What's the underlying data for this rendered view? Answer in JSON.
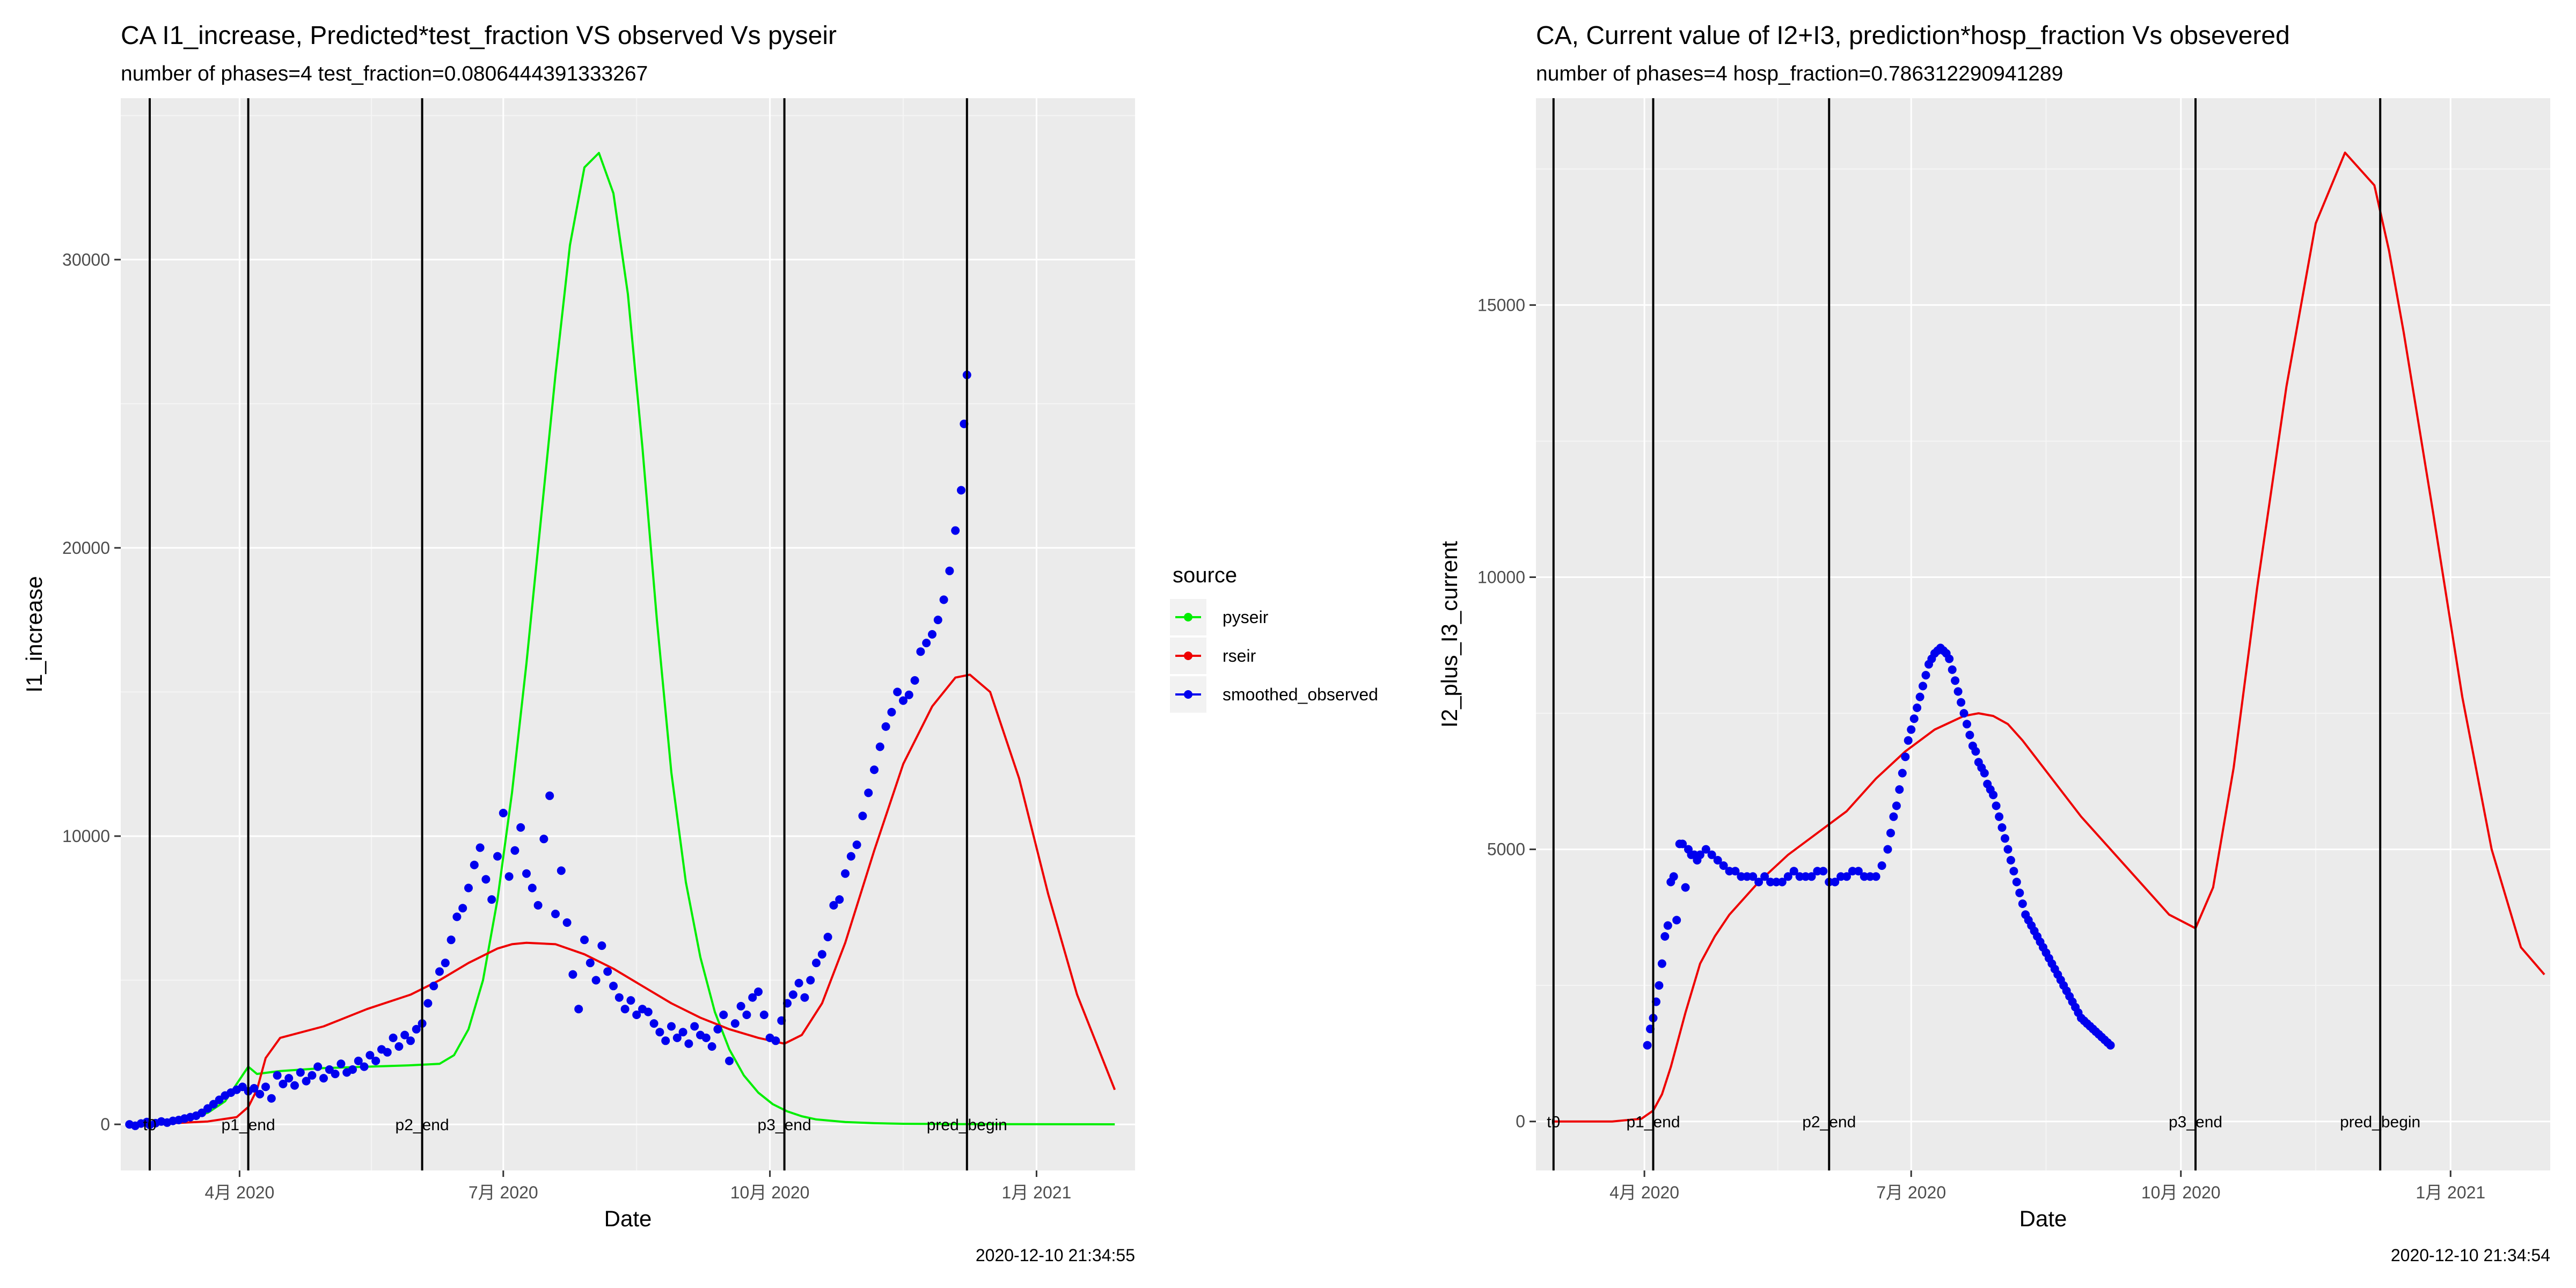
{
  "chart_data": [
    {
      "type": "line",
      "title": "CA I1_increase, Predicted*test_fraction VS observed Vs pyseir",
      "subtitle": "number of phases=4   test_fraction=0.0806444391333267",
      "xlabel": "Date",
      "ylabel": "I1_increase",
      "timestamp": "2020-12-10 21:34:55",
      "xlim": [
        -10,
        340
      ],
      "ylim": [
        -1600,
        35600
      ],
      "x_ticks": [
        {
          "x": 31,
          "label": "4月 2020"
        },
        {
          "x": 122,
          "label": "7月 2020"
        },
        {
          "x": 214,
          "label": "10月 2020"
        },
        {
          "x": 306,
          "label": "1月 2021"
        }
      ],
      "y_ticks": [
        {
          "y": 0,
          "label": "0"
        },
        {
          "y": 10000,
          "label": "10000"
        },
        {
          "y": 20000,
          "label": "20000"
        },
        {
          "y": 30000,
          "label": "30000"
        }
      ],
      "vlines": [
        {
          "x": 0,
          "label": "t0"
        },
        {
          "x": 34,
          "label": "p1_end"
        },
        {
          "x": 94,
          "label": "p2_end"
        },
        {
          "x": 219,
          "label": "p3_end"
        },
        {
          "x": 282,
          "label": "pred_begin"
        }
      ],
      "legend": {
        "title": "source",
        "position": "right",
        "entries": [
          {
            "name": "pyseir",
            "color": "#00ee00"
          },
          {
            "name": "rseir",
            "color": "#ee0000"
          },
          {
            "name": "smoothed_observed",
            "color": "#0000ee"
          }
        ]
      },
      "series": [
        {
          "name": "pyseir",
          "kind": "line",
          "color": "#00ee00",
          "x": [
            -6,
            0,
            10,
            20,
            26,
            30,
            34,
            37,
            45,
            60,
            75,
            90,
            100,
            105,
            110,
            115,
            120,
            125,
            130,
            135,
            140,
            145,
            150,
            155,
            160,
            165,
            170,
            175,
            180,
            185,
            190,
            195,
            200,
            205,
            210,
            215,
            220,
            225,
            230,
            240,
            250,
            260,
            280,
            300,
            320,
            333
          ],
          "y": [
            0,
            50,
            150,
            400,
            800,
            1400,
            2000,
            1750,
            1850,
            1950,
            2000,
            2050,
            2100,
            2400,
            3300,
            5000,
            7800,
            11500,
            16000,
            21000,
            26000,
            30500,
            33200,
            33700,
            32300,
            28800,
            23500,
            17500,
            12200,
            8400,
            5800,
            3900,
            2600,
            1700,
            1100,
            700,
            450,
            280,
            170,
            80,
            40,
            20,
            8,
            5,
            3,
            2
          ]
        },
        {
          "name": "rseir",
          "kind": "line",
          "color": "#ee0000",
          "x": [
            -6,
            0,
            10,
            20,
            30,
            34,
            37,
            40,
            45,
            60,
            75,
            90,
            100,
            110,
            120,
            125,
            130,
            140,
            150,
            160,
            170,
            180,
            190,
            200,
            210,
            219,
            225,
            232,
            240,
            250,
            260,
            270,
            278,
            283,
            290,
            300,
            310,
            320,
            333
          ],
          "y": [
            0,
            20,
            50,
            100,
            250,
            600,
            1200,
            2300,
            3000,
            3400,
            4000,
            4500,
            5000,
            5600,
            6100,
            6250,
            6300,
            6250,
            5900,
            5400,
            4800,
            4200,
            3700,
            3300,
            3000,
            2800,
            3100,
            4200,
            6300,
            9500,
            12500,
            14500,
            15500,
            15600,
            15000,
            12000,
            8000,
            4500,
            1200
          ]
        },
        {
          "name": "smoothed_observed",
          "kind": "scatter",
          "color": "#0000ee",
          "x": [
            -7,
            -5,
            -3,
            -1,
            0,
            2,
            4,
            6,
            8,
            10,
            12,
            14,
            16,
            18,
            20,
            22,
            24,
            26,
            28,
            30,
            32,
            34,
            36,
            38,
            40,
            42,
            44,
            46,
            48,
            50,
            52,
            54,
            56,
            58,
            60,
            62,
            64,
            66,
            68,
            70,
            72,
            74,
            76,
            78,
            80,
            82,
            84,
            86,
            88,
            90,
            92,
            94,
            96,
            98,
            100,
            102,
            104,
            106,
            108,
            110,
            112,
            114,
            116,
            118,
            120,
            122,
            124,
            126,
            128,
            130,
            132,
            134,
            136,
            138,
            140,
            142,
            144,
            146,
            148,
            150,
            152,
            154,
            156,
            158,
            160,
            162,
            164,
            166,
            168,
            170,
            172,
            174,
            176,
            178,
            180,
            182,
            184,
            186,
            188,
            190,
            192,
            194,
            196,
            198,
            200,
            202,
            204,
            206,
            208,
            210,
            212,
            214,
            216,
            218,
            220,
            222,
            224,
            226,
            228,
            230,
            232,
            234,
            236,
            238,
            240,
            242,
            244,
            246,
            248,
            250,
            252,
            254,
            256,
            258,
            260,
            262,
            264,
            266,
            268,
            270,
            272,
            274,
            276,
            278,
            280,
            281,
            282
          ],
          "y": [
            0,
            -50,
            30,
            80,
            -20,
            40,
            100,
            60,
            120,
            150,
            200,
            250,
            300,
            400,
            550,
            700,
            850,
            1000,
            1100,
            1200,
            1300,
            1150,
            1250,
            1050,
            1300,
            900,
            1700,
            1400,
            1600,
            1350,
            1800,
            1500,
            1700,
            2000,
            1600,
            1900,
            1750,
            2100,
            1800,
            1900,
            2200,
            2000,
            2400,
            2200,
            2600,
            2500,
            3000,
            2700,
            3100,
            2900,
            3300,
            3500,
            4200,
            4800,
            5300,
            5600,
            6400,
            7200,
            7500,
            8200,
            9000,
            9600,
            8500,
            7800,
            9300,
            10800,
            8600,
            9500,
            10300,
            8700,
            8200,
            7600,
            9900,
            11400,
            7300,
            8800,
            7000,
            5200,
            4000,
            6400,
            5600,
            5000,
            6200,
            5300,
            4800,
            4400,
            4000,
            4300,
            3800,
            4000,
            3900,
            3500,
            3200,
            2900,
            3400,
            3000,
            3200,
            2800,
            3400,
            3100,
            3000,
            2700,
            3300,
            3800,
            2200,
            3500,
            4100,
            3800,
            4400,
            4600,
            3800,
            3000,
            2900,
            3600,
            4200,
            4500,
            4900,
            4400,
            5000,
            5600,
            5900,
            6500,
            7600,
            7800,
            8700,
            9300,
            9700,
            10700,
            11500,
            12300,
            13100,
            13800,
            14300,
            15000,
            14700,
            14900,
            15400,
            16400,
            16700,
            17000,
            17500,
            18200,
            19200,
            20600,
            22000,
            24300,
            26000
          ]
        }
      ]
    },
    {
      "type": "line",
      "title": "CA, Current value of I2+I3, prediction*hosp_fraction Vs obsevered",
      "subtitle": "number of phases=4   hosp_fraction=0.786312290941289",
      "xlabel": "Date",
      "ylabel": "I2_plus_I3_current",
      "timestamp": "2020-12-10 21:34:54",
      "xlim": [
        -6,
        340
      ],
      "ylim": [
        -900,
        18800
      ],
      "x_ticks": [
        {
          "x": 31,
          "label": "4月 2020"
        },
        {
          "x": 122,
          "label": "7月 2020"
        },
        {
          "x": 214,
          "label": "10月 2020"
        },
        {
          "x": 306,
          "label": "1月 2021"
        }
      ],
      "y_ticks": [
        {
          "y": 0,
          "label": "0"
        },
        {
          "y": 5000,
          "label": "5000"
        },
        {
          "y": 10000,
          "label": "10000"
        },
        {
          "y": 15000,
          "label": "15000"
        }
      ],
      "vlines": [
        {
          "x": 0,
          "label": "t0"
        },
        {
          "x": 34,
          "label": "p1_end"
        },
        {
          "x": 94,
          "label": "p2_end"
        },
        {
          "x": 219,
          "label": "p3_end"
        },
        {
          "x": 282,
          "label": "pred_begin"
        }
      ],
      "series": [
        {
          "name": "rseir",
          "kind": "line",
          "color": "#ee0000",
          "x": [
            0,
            10,
            20,
            30,
            34,
            37,
            40,
            45,
            50,
            55,
            60,
            70,
            80,
            90,
            100,
            110,
            120,
            130,
            140,
            145,
            150,
            155,
            160,
            170,
            180,
            190,
            200,
            210,
            219,
            225,
            232,
            240,
            250,
            260,
            270,
            280,
            285,
            290,
            300,
            310,
            320,
            330,
            338
          ],
          "y": [
            0,
            0,
            0,
            50,
            200,
            500,
            1000,
            2000,
            2900,
            3400,
            3800,
            4400,
            4900,
            5300,
            5700,
            6300,
            6800,
            7200,
            7450,
            7500,
            7450,
            7300,
            7000,
            6300,
            5600,
            5000,
            4400,
            3800,
            3550,
            4300,
            6500,
            9800,
            13500,
            16500,
            17800,
            17200,
            16000,
            14500,
            11200,
            7800,
            5000,
            3200,
            2700
          ]
        },
        {
          "name": "smoothed_observed",
          "kind": "scatter",
          "color": "#0000ee",
          "x": [
            32,
            33,
            34,
            35,
            36,
            37,
            38,
            39,
            40,
            41,
            42,
            43,
            44,
            45,
            46,
            47,
            48,
            49,
            50,
            52,
            54,
            56,
            58,
            60,
            62,
            64,
            66,
            68,
            70,
            72,
            74,
            76,
            78,
            80,
            82,
            84,
            86,
            88,
            90,
            92,
            94,
            96,
            98,
            100,
            102,
            104,
            106,
            108,
            110,
            112,
            114,
            115,
            116,
            117,
            118,
            119,
            120,
            121,
            122,
            123,
            124,
            125,
            126,
            127,
            128,
            129,
            130,
            131,
            132,
            133,
            134,
            135,
            136,
            137,
            138,
            139,
            140,
            141,
            142,
            143,
            144,
            145,
            146,
            147,
            148,
            149,
            150,
            151,
            152,
            153,
            154,
            155,
            156,
            157,
            158,
            159,
            160,
            161,
            162,
            163,
            164,
            165,
            166,
            167,
            168,
            169,
            170,
            171,
            172,
            173,
            174,
            175,
            176,
            177,
            178,
            179,
            180,
            181,
            182,
            183,
            184,
            185,
            186,
            187,
            188,
            189,
            190
          ],
          "y": [
            1400,
            1700,
            1900,
            2200,
            2500,
            2900,
            3400,
            3600,
            4400,
            4500,
            3700,
            5100,
            5100,
            4300,
            5000,
            4900,
            4900,
            4800,
            4900,
            5000,
            4900,
            4800,
            4700,
            4600,
            4600,
            4500,
            4500,
            4500,
            4400,
            4500,
            4400,
            4400,
            4400,
            4500,
            4600,
            4500,
            4500,
            4500,
            4600,
            4600,
            4400,
            4400,
            4500,
            4500,
            4600,
            4600,
            4500,
            4500,
            4500,
            4700,
            5000,
            5300,
            5600,
            5800,
            6100,
            6400,
            6700,
            7000,
            7200,
            7400,
            7600,
            7800,
            8000,
            8200,
            8400,
            8500,
            8600,
            8650,
            8700,
            8650,
            8600,
            8500,
            8300,
            8100,
            7900,
            7700,
            7500,
            7300,
            7100,
            6900,
            6800,
            6600,
            6500,
            6400,
            6200,
            6100,
            6000,
            5800,
            5600,
            5400,
            5200,
            5000,
            4800,
            4600,
            4400,
            4200,
            4000,
            3800,
            3700,
            3600,
            3500,
            3400,
            3300,
            3200,
            3100,
            3000,
            2900,
            2800,
            2700,
            2600,
            2500,
            2400,
            2300,
            2200,
            2100,
            2000,
            1900,
            1850,
            1800,
            1750,
            1700,
            1650,
            1600,
            1550,
            1500,
            1450,
            1400
          ]
        }
      ]
    }
  ]
}
